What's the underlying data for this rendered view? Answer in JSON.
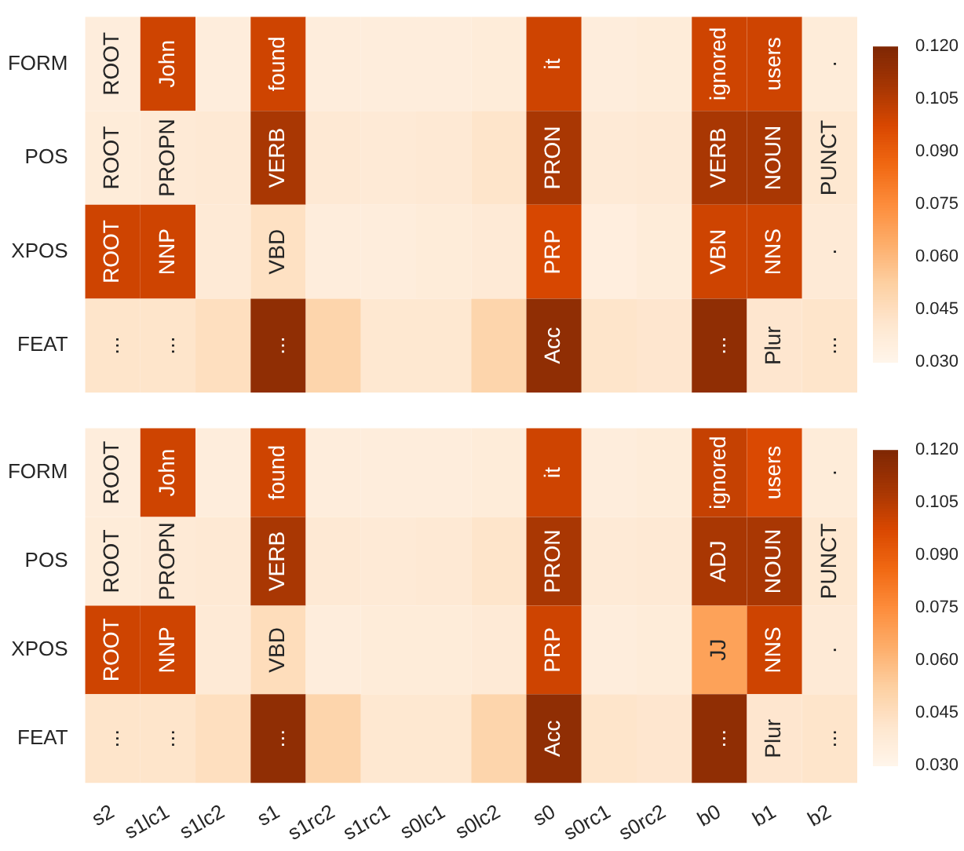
{
  "chart_data": [
    {
      "type": "heatmap",
      "tick_labels": "y",
      "categories": [
        null,
        null,
        null,
        null,
        null,
        null,
        null,
        null,
        null,
        null,
        null,
        null,
        null,
        null
      ],
      "y_categories": [
        "FORM",
        "POS",
        "XPOS",
        "FEAT"
      ],
      "cells": [
        [
          0.036,
          0.1,
          0.036,
          0.1,
          0.036,
          0.036,
          0.036,
          0.037,
          0.1,
          0.036,
          0.037,
          0.1,
          0.1,
          0.037
        ],
        [
          0.037,
          0.038,
          0.039,
          0.108,
          0.039,
          0.038,
          0.039,
          0.042,
          0.108,
          0.038,
          0.039,
          0.108,
          0.108,
          0.04
        ],
        [
          0.1,
          0.1,
          0.038,
          0.044,
          0.036,
          0.036,
          0.037,
          0.038,
          0.098,
          0.035,
          0.037,
          0.1,
          0.1,
          0.038
        ],
        [
          0.042,
          0.042,
          0.045,
          0.115,
          0.05,
          0.04,
          0.04,
          0.05,
          0.115,
          0.042,
          0.041,
          0.115,
          0.041,
          0.042
        ]
      ],
      "cell_labels": [
        [
          "ROOT",
          "John",
          null,
          "found",
          null,
          null,
          null,
          null,
          "it",
          null,
          null,
          "ignored",
          "users",
          "."
        ],
        [
          "ROOT",
          "PROPN",
          null,
          "VERB",
          null,
          null,
          null,
          null,
          "PRON",
          null,
          null,
          "VERB",
          "NOUN",
          "PUNCT"
        ],
        [
          "ROOT",
          "NNP",
          null,
          "VBD",
          null,
          null,
          null,
          null,
          "PRP",
          null,
          null,
          "VBN",
          "NNS",
          "."
        ],
        [
          "...",
          "...",
          null,
          "...",
          null,
          null,
          null,
          null,
          "Acc",
          null,
          null,
          "...",
          "Plur",
          "..."
        ]
      ],
      "clim": [
        0.03,
        0.12
      ],
      "cticks": [
        {
          "value": 0.03,
          "label": "0.030"
        },
        {
          "value": 0.045,
          "label": "0.045"
        },
        {
          "value": 0.06,
          "label": "0.060"
        },
        {
          "value": 0.075,
          "label": "0.075"
        },
        {
          "value": 0.09,
          "label": "0.090"
        },
        {
          "value": 0.105,
          "label": "0.105"
        },
        {
          "value": 0.12,
          "label": "0.120"
        }
      ]
    },
    {
      "type": "heatmap",
      "categories": [
        "s2",
        "s1lc1",
        "s1lc2",
        "s1",
        "s1rc2",
        "s1rc1",
        "s0lc1",
        "s0lc2",
        "s0",
        "s0rc1",
        "s0rc2",
        "b0",
        "b1",
        "b2"
      ],
      "y_categories": [
        "FORM",
        "POS",
        "XPOS",
        "FEAT"
      ],
      "cells": [
        [
          0.036,
          0.1,
          0.036,
          0.1,
          0.036,
          0.036,
          0.036,
          0.037,
          0.1,
          0.036,
          0.037,
          0.102,
          0.097,
          0.037
        ],
        [
          0.037,
          0.038,
          0.039,
          0.108,
          0.039,
          0.038,
          0.039,
          0.042,
          0.108,
          0.038,
          0.039,
          0.108,
          0.108,
          0.04
        ],
        [
          0.1,
          0.1,
          0.038,
          0.046,
          0.036,
          0.037,
          0.037,
          0.038,
          0.1,
          0.036,
          0.037,
          0.068,
          0.1,
          0.038
        ],
        [
          0.042,
          0.042,
          0.045,
          0.115,
          0.05,
          0.04,
          0.04,
          0.05,
          0.115,
          0.042,
          0.041,
          0.115,
          0.041,
          0.042
        ]
      ],
      "cell_labels": [
        [
          "ROOT",
          "John",
          null,
          "found",
          null,
          null,
          null,
          null,
          "it",
          null,
          null,
          "ignored",
          "users",
          "."
        ],
        [
          "ROOT",
          "PROPN",
          null,
          "VERB",
          null,
          null,
          null,
          null,
          "PRON",
          null,
          null,
          "ADJ",
          "NOUN",
          "PUNCT"
        ],
        [
          "ROOT",
          "NNP",
          null,
          "VBD",
          null,
          null,
          null,
          null,
          "PRP",
          null,
          null,
          "JJ",
          "NNS",
          "."
        ],
        [
          "...",
          "...",
          null,
          "...",
          null,
          null,
          null,
          null,
          "Acc",
          null,
          null,
          "...",
          "Plur",
          "..."
        ]
      ],
      "clim": [
        0.03,
        0.12
      ],
      "cticks": [
        {
          "value": 0.03,
          "label": "0.030"
        },
        {
          "value": 0.045,
          "label": "0.045"
        },
        {
          "value": 0.06,
          "label": "0.060"
        },
        {
          "value": 0.075,
          "label": "0.075"
        },
        {
          "value": 0.09,
          "label": "0.090"
        },
        {
          "value": 0.105,
          "label": "0.105"
        },
        {
          "value": 0.12,
          "label": "0.120"
        }
      ]
    }
  ]
}
